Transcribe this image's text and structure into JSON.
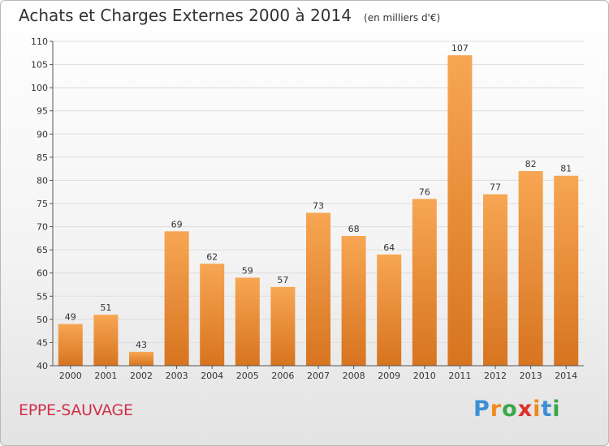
{
  "title": "Achats et Charges Externes 2000 à 2014",
  "subtitle": "(en milliers d'€)",
  "municipality": "EPPE-SAUVAGE",
  "brand": {
    "text": "Proxiti",
    "letters": [
      {
        "char": "P",
        "color": "#3c8fd6"
      },
      {
        "char": "r",
        "color": "#f08a1c"
      },
      {
        "char": "o",
        "color": "#3aa84a"
      },
      {
        "char": "x",
        "color": "#e0302a"
      },
      {
        "char": "i",
        "color": "#f08a1c"
      },
      {
        "char": "t",
        "color": "#3c8fd6"
      },
      {
        "char": "i",
        "color": "#3aa84a"
      }
    ]
  },
  "colors": {
    "bar_top": "#f7a653",
    "bar_bottom": "#d77420",
    "axis": "#555555",
    "grid": "#dddddd"
  },
  "chart_data": {
    "type": "bar",
    "categories": [
      "2000",
      "2001",
      "2002",
      "2003",
      "2004",
      "2005",
      "2006",
      "2007",
      "2008",
      "2009",
      "2010",
      "2011",
      "2012",
      "2013",
      "2014"
    ],
    "values": [
      49,
      51,
      43,
      69,
      62,
      59,
      57,
      73,
      68,
      64,
      76,
      107,
      77,
      82,
      81
    ],
    "ylim": [
      40,
      110
    ],
    "yticks": [
      40,
      45,
      50,
      55,
      60,
      65,
      70,
      75,
      80,
      85,
      90,
      95,
      100,
      105,
      110
    ],
    "title": "Achats et Charges Externes 2000 à 2014",
    "xlabel": "",
    "ylabel": "",
    "grid": true
  }
}
